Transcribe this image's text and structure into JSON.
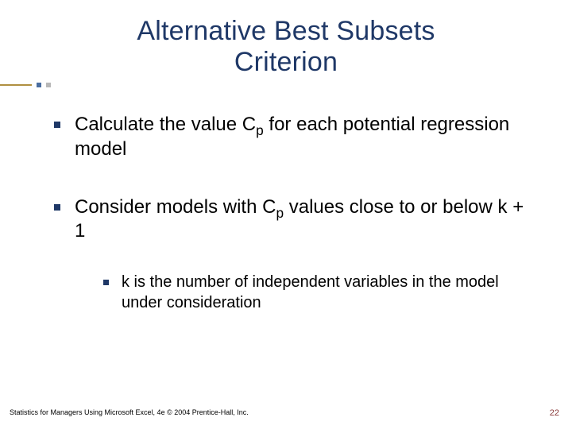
{
  "title_line1": "Alternative Best Subsets",
  "title_line2": "Criterion",
  "bullets": [
    {
      "html": "Calculate the value C<sub>p</sub> for each potential regression model"
    },
    {
      "html": "Consider models with  C<sub>p</sub>  values close to or below k + 1"
    }
  ],
  "sub_bullet": "k is the number of independent variables in the model under consideration",
  "footer": "Statistics for Managers Using Microsoft Excel, 4e © 2004 Prentice-Hall, Inc.",
  "page_number": "22",
  "colors": {
    "title": "#1f3867",
    "bullet_square": "#1f3867",
    "accent_line": "#b09040",
    "accent_dot1": "#4a6ea0",
    "accent_dot2": "#b8b8b8",
    "page_num": "#8a3a3a",
    "background": "#ffffff"
  }
}
